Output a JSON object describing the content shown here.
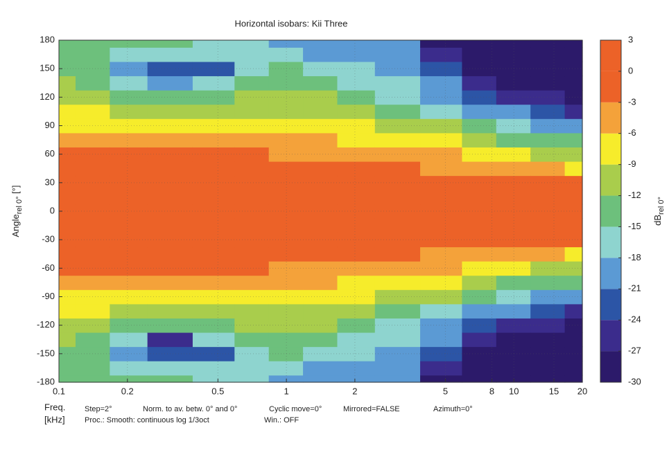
{
  "chart_data": {
    "type": "contour",
    "title": "Horizontal isobars: Kii  Three",
    "ylabel": {
      "main": "Angle",
      "sub": "rel 0°",
      "unit": " [°]"
    },
    "colorbar_label": {
      "main": "dB",
      "sub": "rel 0°"
    },
    "xlabel": {
      "line1": "Freq.",
      "line2": "[kHz]"
    },
    "footer": {
      "line1": [
        "Step=2°",
        "Norm. to av. betw. 0° and 0°",
        "Cyclic move=0°",
        "Mirrored=FALSE",
        "Azimuth=0°"
      ],
      "line2": [
        "Proc.: Smooth: continuous log 1/3oct",
        "Win.: OFF"
      ]
    },
    "log_x": true,
    "grid": true,
    "xlim": [
      0.1,
      20
    ],
    "xticks": [
      0.1,
      0.2,
      0.5,
      1,
      2,
      5,
      8,
      10,
      15,
      20
    ],
    "ylim": [
      -180,
      180
    ],
    "yticks": [
      -180,
      -150,
      -120,
      -90,
      -60,
      -30,
      0,
      30,
      60,
      90,
      120,
      150,
      180
    ],
    "levels": [
      -30,
      -27,
      -24,
      -21,
      -18,
      -15,
      -12,
      -9,
      -6,
      -3,
      0,
      3
    ],
    "colors": [
      "#2c1a6a",
      "#3b2c8c",
      "#2c55a6",
      "#5b9ad4",
      "#8ed4cf",
      "#6dc07c",
      "#a9cd4c",
      "#f6ec2b",
      "#f4a23a",
      "#ec6228",
      "#ec6228"
    ],
    "x": [
      0.1,
      0.14,
      0.2,
      0.3,
      0.5,
      0.7,
      1,
      1.4,
      2,
      3,
      5,
      7,
      10,
      14,
      20
    ],
    "y": [
      -180,
      -165,
      -150,
      -135,
      -120,
      -105,
      -90,
      -75,
      -60,
      -45,
      -30,
      -15,
      0,
      15,
      30,
      45,
      60,
      75,
      90,
      105,
      120,
      135,
      150,
      165,
      180
    ],
    "z": [
      [
        -13,
        -13,
        -13,
        -12,
        -10,
        -8.5,
        -7,
        -4,
        -2.5,
        -1.5,
        -1,
        -0.5,
        0,
        -0.5,
        -1,
        -1.5,
        -2.5,
        -4,
        -7,
        -8.5,
        -10,
        -12,
        -13,
        -13,
        -13
      ],
      [
        -14,
        -14,
        -14,
        -13,
        -11,
        -9,
        -7,
        -4.5,
        -2.5,
        -1.5,
        -1,
        -0.5,
        0,
        -0.5,
        -1,
        -1.5,
        -2.5,
        -4.5,
        -7,
        -9,
        -11,
        -13,
        -14,
        -14,
        -14
      ],
      [
        -14,
        -16,
        -19,
        -16,
        -13,
        -10,
        -7,
        -5,
        -2.5,
        -1.5,
        -1,
        -0.5,
        0,
        -0.5,
        -1,
        -1.5,
        -2.5,
        -5,
        -7,
        -10,
        -13,
        -16,
        -19,
        -16,
        -14
      ],
      [
        -15,
        -18,
        -22,
        -26,
        -14,
        -10,
        -7.5,
        -5,
        -2.8,
        -2,
        -1,
        -0.5,
        0,
        -0.5,
        -1,
        -2,
        -2.8,
        -5,
        -7.5,
        -10,
        -14,
        -19,
        -24,
        -18,
        -15
      ],
      [
        -16,
        -18,
        -22,
        -17,
        -13,
        -10,
        -7.5,
        -5,
        -2.5,
        -1.5,
        -1,
        -0.5,
        0,
        -0.5,
        -1,
        -1.5,
        -2.5,
        -5,
        -7.5,
        -10,
        -13,
        -17,
        -22,
        -18,
        -16
      ],
      [
        -18,
        -17,
        -16,
        -14,
        -12,
        -10,
        -7.5,
        -5,
        -2.8,
        -1.8,
        -1,
        -0.5,
        0,
        -0.5,
        -1,
        -1.8,
        -2.8,
        -5,
        -7.5,
        -10,
        -12,
        -14,
        -16,
        -17,
        -18
      ],
      [
        -19,
        -17,
        -14,
        -12.5,
        -11,
        -9.5,
        -7.5,
        -5.5,
        -3.5,
        -2,
        -1,
        -0.5,
        0,
        -0.5,
        -1,
        -2,
        -3.5,
        -5.5,
        -7.5,
        -9.5,
        -11,
        -12.5,
        -14,
        -17,
        -19
      ],
      [
        -21,
        -19,
        -16,
        -13,
        -11,
        -9.5,
        -8,
        -6,
        -4,
        -2.5,
        -1.2,
        -0.5,
        0,
        -0.5,
        -1.2,
        -2.5,
        -4,
        -6,
        -8,
        -9.5,
        -11,
        -13,
        -16,
        -19,
        -21
      ],
      [
        -21,
        -20,
        -18,
        -16,
        -13,
        -11,
        -8.5,
        -6.5,
        -4.5,
        -2.8,
        -1.5,
        -0.5,
        0,
        -0.5,
        -1.5,
        -2.8,
        -4.5,
        -6.5,
        -8.5,
        -11,
        -13,
        -16,
        -18,
        -20,
        -21
      ],
      [
        -20,
        -20,
        -19,
        -18,
        -16,
        -13,
        -10,
        -7,
        -5,
        -3,
        -1.5,
        -0.5,
        0,
        -0.5,
        -1.5,
        -3,
        -5,
        -7,
        -10,
        -13,
        -16,
        -18,
        -19,
        -20,
        -20
      ],
      [
        -28,
        -25,
        -23,
        -21,
        -19,
        -16,
        -12,
        -9,
        -6,
        -3.5,
        -2,
        -0.5,
        0,
        -0.5,
        -2,
        -3.5,
        -6,
        -9,
        -12,
        -16,
        -19,
        -21,
        -23,
        -25,
        -28
      ],
      [
        -29,
        -29,
        -28,
        -25,
        -22,
        -19,
        -15,
        -11,
        -7,
        -4,
        -2,
        -0.5,
        0,
        -0.5,
        -2,
        -4,
        -7,
        -11,
        -15,
        -19,
        -22,
        -25,
        -28,
        -29,
        -29
      ],
      [
        -29,
        -29,
        -29,
        -28,
        -26,
        -21,
        -17,
        -13,
        -9,
        -5,
        -2.5,
        -1,
        0,
        -1,
        -2.5,
        -5,
        -9,
        -13,
        -17,
        -21,
        -26,
        -28,
        -29,
        -29,
        -29
      ],
      [
        -29,
        -29,
        -29,
        -29,
        -27,
        -23,
        -19,
        -14,
        -10,
        -5.5,
        -2.5,
        -1,
        0,
        -1,
        -2.5,
        -5.5,
        -10,
        -14,
        -19,
        -23,
        -27,
        -29,
        -29,
        -29,
        -29
      ],
      [
        -29,
        -29,
        -29,
        -29,
        -28,
        -25,
        -20,
        -15,
        -12,
        -7,
        -3,
        -1.5,
        0,
        -1.5,
        -3,
        -7,
        -12,
        -15,
        -20,
        -25,
        -28,
        -29,
        -29,
        -29,
        -29
      ]
    ]
  }
}
